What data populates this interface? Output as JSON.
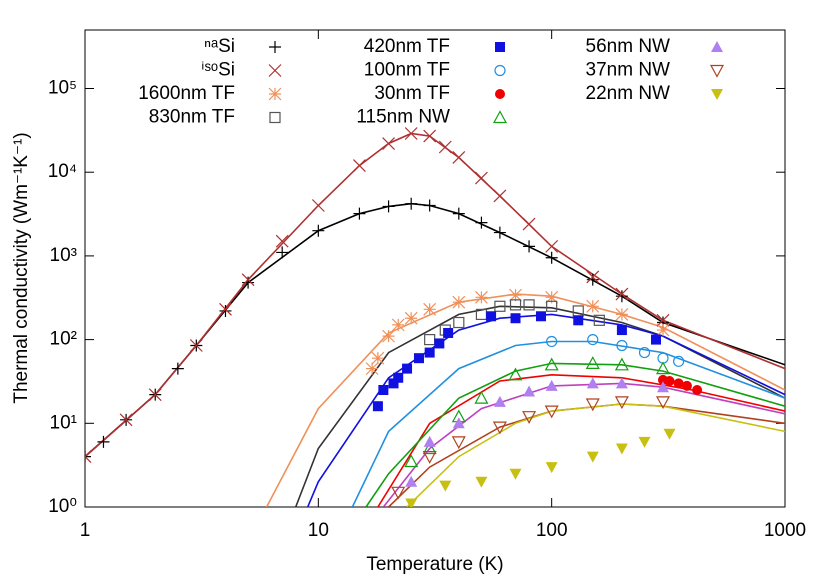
{
  "chart_data": {
    "type": "scatter",
    "log_x": true,
    "log_y": true,
    "legend": "top",
    "x_label": "Temperature (K)",
    "y_label": "Thermal conductivity (Wm⁻¹K⁻¹)",
    "xlim": [
      1,
      1000
    ],
    "xticks": [
      1,
      10,
      100,
      1000
    ],
    "ylim": [
      1,
      500000
    ],
    "yticks": [
      {
        "value": 1,
        "label": "10⁰"
      },
      {
        "value": 10,
        "label": "10¹"
      },
      {
        "value": 100,
        "label": "10²"
      },
      {
        "value": 1000,
        "label": "10³"
      },
      {
        "value": 10000,
        "label": "10⁴"
      },
      {
        "value": 100000,
        "label": "10⁵"
      }
    ],
    "series": [
      {
        "name": "ⁿᵃSi",
        "color": "#000000",
        "marker": "plus",
        "x": [
          1,
          1.2,
          1.5,
          2,
          2.5,
          3,
          4,
          5,
          7,
          10,
          15,
          20,
          25,
          30,
          40,
          50,
          60,
          80,
          100,
          150,
          200,
          300
        ],
        "values": [
          4,
          6,
          11,
          22,
          45,
          85,
          220,
          480,
          1100,
          2000,
          3200,
          3900,
          4200,
          4000,
          3200,
          2500,
          1900,
          1300,
          950,
          520,
          330,
          160
        ]
      },
      {
        "name": "ⁱˢᵒSi",
        "color": "#b03030",
        "marker": "cross",
        "x": [
          1,
          1.5,
          2,
          3,
          4,
          5,
          7,
          10,
          15,
          20,
          25,
          30,
          35,
          40,
          50,
          60,
          80,
          100,
          150,
          200,
          300
        ],
        "values": [
          4,
          11,
          22,
          85,
          230,
          520,
          1500,
          4000,
          12000,
          22000,
          29000,
          27000,
          20000,
          15000,
          8500,
          5200,
          2400,
          1300,
          560,
          350,
          170
        ]
      },
      {
        "name": "1600nm TF",
        "color": "#f0905a",
        "marker": "star",
        "x": [
          17,
          18,
          20,
          22,
          25,
          30,
          40,
          50,
          70,
          100,
          150,
          200,
          300
        ],
        "values": [
          45,
          60,
          110,
          150,
          180,
          230,
          280,
          320,
          340,
          320,
          250,
          200,
          130
        ]
      },
      {
        "name": "830nm TF",
        "color": "#555555",
        "marker": "square-open",
        "x": [
          30,
          35,
          40,
          50,
          60,
          70,
          80,
          100,
          130,
          160
        ],
        "values": [
          100,
          130,
          160,
          200,
          250,
          260,
          260,
          250,
          220,
          170
        ]
      },
      {
        "name": "420nm TF",
        "color": "#1010e0",
        "marker": "square",
        "x": [
          18,
          19,
          21,
          22,
          24,
          27,
          30,
          33,
          36,
          55,
          70,
          90,
          130,
          200,
          280
        ],
        "values": [
          16,
          25,
          30,
          35,
          45,
          60,
          70,
          90,
          120,
          190,
          180,
          190,
          170,
          130,
          100
        ]
      },
      {
        "name": "100nm TF",
        "color": "#2090e0",
        "marker": "circle-open",
        "x": [
          100,
          150,
          200,
          250,
          300,
          350
        ],
        "values": [
          95,
          100,
          85,
          70,
          60,
          55
        ]
      },
      {
        "name": "30nm TF",
        "color": "#f00000",
        "marker": "circle",
        "x": [
          300,
          320,
          350,
          380,
          420
        ],
        "values": [
          33,
          32,
          30,
          28,
          25
        ]
      },
      {
        "name": "115nm NW",
        "color": "#10a010",
        "marker": "triangle-open",
        "x": [
          25,
          30,
          40,
          50,
          70,
          100,
          150,
          200,
          300
        ],
        "values": [
          3.5,
          5,
          12,
          20,
          38,
          50,
          52,
          50,
          45
        ]
      },
      {
        "name": "56nm NW",
        "color": "#b080f0",
        "marker": "triangle",
        "x": [
          25,
          30,
          40,
          60,
          80,
          100,
          150,
          200,
          300
        ],
        "values": [
          2,
          6,
          10,
          18,
          24,
          28,
          30,
          30,
          27
        ]
      },
      {
        "name": "37nm NW",
        "color": "#b04020",
        "marker": "triangle-down-open",
        "x": [
          22,
          30,
          40,
          60,
          80,
          100,
          150,
          200,
          300
        ],
        "values": [
          1.5,
          4,
          6,
          9,
          12,
          14,
          17,
          18,
          18
        ]
      },
      {
        "name": "22nm NW",
        "color": "#c8c010",
        "marker": "triangle-down",
        "x": [
          25,
          35,
          50,
          70,
          100,
          150,
          200,
          250,
          320
        ],
        "values": [
          1.1,
          1.8,
          2,
          2.5,
          3,
          4,
          5,
          6,
          7.5
        ]
      }
    ],
    "lines": [
      {
        "color": "#000000",
        "x": [
          1,
          2,
          3,
          5,
          10,
          15,
          20,
          25,
          30,
          40,
          60,
          100,
          200,
          300,
          1000
        ],
        "values": [
          4,
          22,
          85,
          480,
          2000,
          3200,
          3900,
          4200,
          4000,
          3200,
          1900,
          950,
          330,
          160,
          50
        ]
      },
      {
        "color": "#b03030",
        "x": [
          1,
          2,
          3,
          5,
          10,
          15,
          20,
          25,
          30,
          40,
          60,
          100,
          200,
          300,
          1000
        ],
        "values": [
          4,
          22,
          85,
          520,
          4000,
          12000,
          22000,
          29000,
          27000,
          15000,
          5200,
          1300,
          350,
          170,
          45
        ]
      },
      {
        "color": "#f0905a",
        "x": [
          6,
          10,
          20,
          40,
          70,
          100,
          200,
          300,
          1000
        ],
        "values": [
          1,
          15,
          120,
          280,
          350,
          330,
          200,
          140,
          25
        ]
      },
      {
        "color": "#333333",
        "x": [
          8,
          10,
          20,
          40,
          60,
          100,
          200,
          300,
          1000
        ],
        "values": [
          1,
          5,
          70,
          200,
          250,
          240,
          160,
          110,
          20
        ]
      },
      {
        "color": "#1010e0",
        "x": [
          9,
          10,
          20,
          40,
          60,
          100,
          200,
          300,
          1000
        ],
        "values": [
          1,
          2,
          35,
          130,
          180,
          200,
          150,
          110,
          22
        ]
      },
      {
        "color": "#2090e0",
        "x": [
          14,
          20,
          40,
          70,
          100,
          150,
          300,
          1000
        ],
        "values": [
          1,
          8,
          45,
          85,
          95,
          95,
          70,
          20
        ]
      },
      {
        "color": "#f00000",
        "x": [
          18,
          30,
          60,
          100,
          200,
          400,
          1000
        ],
        "values": [
          1,
          10,
          32,
          38,
          35,
          25,
          14
        ]
      },
      {
        "color": "#10a010",
        "x": [
          16,
          20,
          40,
          70,
          100,
          200,
          300,
          1000
        ],
        "values": [
          1,
          2.5,
          20,
          42,
          52,
          50,
          42,
          16
        ]
      },
      {
        "color": "#c040c0",
        "x": [
          19,
          30,
          50,
          100,
          200,
          300,
          1000
        ],
        "values": [
          1,
          5,
          15,
          28,
          30,
          27,
          13
        ]
      },
      {
        "color": "#b04020",
        "x": [
          20,
          30,
          60,
          100,
          200,
          300,
          1000
        ],
        "values": [
          1,
          3,
          9,
          14,
          17,
          16,
          10
        ]
      },
      {
        "color": "#c8c010",
        "x": [
          24,
          40,
          70,
          100,
          200,
          300,
          1000
        ],
        "values": [
          1,
          4,
          10,
          14,
          17,
          16,
          8
        ]
      }
    ]
  }
}
